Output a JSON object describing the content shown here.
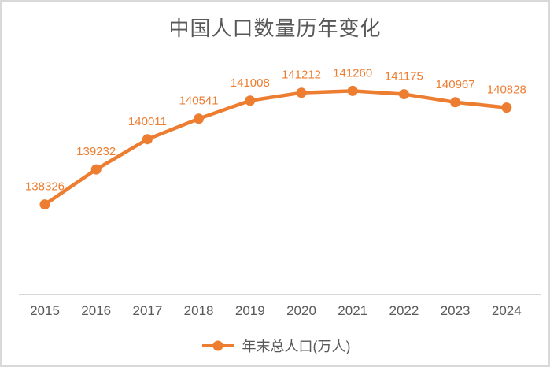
{
  "chart_data": {
    "type": "line",
    "title": "中国人口数量历年变化",
    "categories": [
      "2015",
      "2016",
      "2017",
      "2018",
      "2019",
      "2020",
      "2021",
      "2022",
      "2023",
      "2024"
    ],
    "series": [
      {
        "name": "年末总人口(万人)",
        "values": [
          138326,
          139232,
          140011,
          140541,
          141008,
          141212,
          141260,
          141175,
          140967,
          140828
        ]
      }
    ],
    "xlabel": "",
    "ylabel": "",
    "ylim": [
      136000,
      142000
    ],
    "grid": false,
    "data_labels": true,
    "legend_position": "bottom"
  },
  "legend": {
    "label": "年末总人口(万人)"
  },
  "colors": {
    "series": "#ED7D31",
    "data_label_text": "#ED7D31",
    "title_text": "#595959",
    "axis_text": "#595959",
    "axis_line": "#D9D9D9",
    "border": "#D9D9D9",
    "background": "#FFFFFF"
  }
}
